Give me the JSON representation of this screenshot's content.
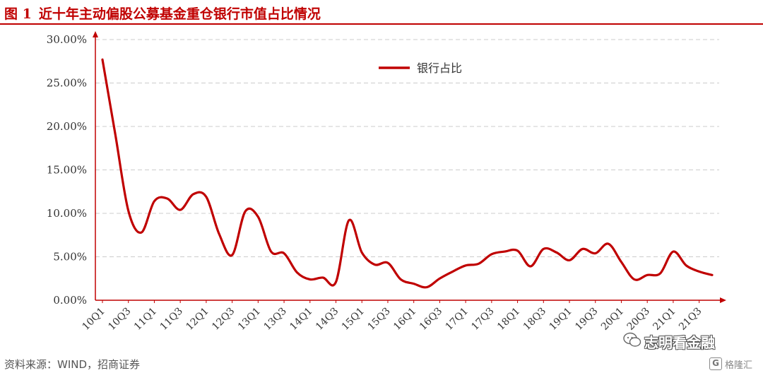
{
  "header": {
    "figure_number": "图 1",
    "title": "近十年主动偏股公募基金重仓银行市值占比情况"
  },
  "footer": {
    "source": "资料来源：WIND，招商证券"
  },
  "watermark": {
    "text": "志明看金融",
    "icon": "wechat-icon"
  },
  "brand": {
    "logo_letter": "G",
    "text": "格隆汇"
  },
  "colors": {
    "accent": "#c00000",
    "grid": "#cccccc",
    "text": "#333333"
  },
  "chart_data": {
    "type": "line",
    "title": "",
    "xlabel": "",
    "ylabel": "",
    "ylim": [
      0,
      30
    ],
    "y_ticks": [
      "0.00%",
      "5.00%",
      "10.00%",
      "15.00%",
      "20.00%",
      "25.00%",
      "30.00%"
    ],
    "y_tick_values": [
      0,
      5,
      10,
      15,
      20,
      25,
      30
    ],
    "x_tick_labels": [
      "10Q1",
      "10Q3",
      "11Q1",
      "11Q3",
      "12Q1",
      "12Q3",
      "13Q1",
      "13Q3",
      "14Q1",
      "14Q3",
      "15Q1",
      "15Q3",
      "16Q1",
      "16Q3",
      "17Q1",
      "17Q3",
      "18Q1",
      "18Q3",
      "19Q1",
      "19Q3",
      "20Q1",
      "20Q3",
      "21Q1",
      "21Q3"
    ],
    "grid": "horizontal dashed",
    "legend_position": "top-center",
    "series": [
      {
        "name": "银行占比",
        "color": "#c00000",
        "x": [
          "10Q1",
          "10Q2",
          "10Q3",
          "10Q4",
          "11Q1",
          "11Q2",
          "11Q3",
          "11Q4",
          "12Q1",
          "12Q2",
          "12Q3",
          "12Q4",
          "13Q1",
          "13Q2",
          "13Q3",
          "13Q4",
          "14Q1",
          "14Q2",
          "14Q3",
          "14Q4",
          "15Q1",
          "15Q2",
          "15Q3",
          "15Q4",
          "16Q1",
          "16Q2",
          "16Q3",
          "16Q4",
          "17Q1",
          "17Q2",
          "17Q3",
          "17Q4",
          "18Q1",
          "18Q2",
          "18Q3",
          "18Q4",
          "19Q1",
          "19Q2",
          "19Q3",
          "19Q4",
          "20Q1",
          "20Q2",
          "20Q3",
          "20Q4",
          "21Q1",
          "21Q2",
          "21Q3",
          "21Q4"
        ],
        "values": [
          27.7,
          19.0,
          10.3,
          7.8,
          11.4,
          11.7,
          10.4,
          12.2,
          11.9,
          7.6,
          5.2,
          10.2,
          9.6,
          5.6,
          5.4,
          3.2,
          2.4,
          2.6,
          2.1,
          9.2,
          5.5,
          4.1,
          4.3,
          2.4,
          1.9,
          1.5,
          2.5,
          3.3,
          4.0,
          4.2,
          5.3,
          5.6,
          5.7,
          3.9,
          5.9,
          5.5,
          4.6,
          5.9,
          5.4,
          6.5,
          4.4,
          2.4,
          2.9,
          3.1,
          5.6,
          4.0,
          3.3,
          2.9
        ]
      }
    ]
  }
}
